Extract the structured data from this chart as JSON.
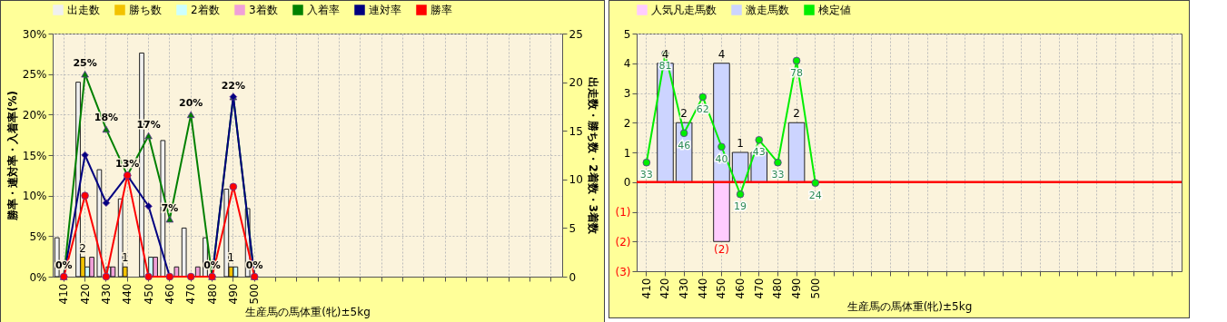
{
  "chart_data": [
    {
      "type": "bar",
      "xlabel": "生産馬の馬体重(牝)±5kg",
      "ylabel": "勝率・連対率・入着率(%)",
      "y2label": "出走数・勝ち数・2着数・3着数",
      "categories": [
        "410",
        "420",
        "430",
        "440",
        "450",
        "460",
        "470",
        "480",
        "490",
        "500",
        null,
        null,
        null,
        null,
        null,
        null,
        null,
        null,
        null,
        null,
        null,
        null,
        null,
        null
      ],
      "series": [
        {
          "name": "出走数",
          "axis": "y2",
          "color": "#f0f0f0",
          "values": [
            4,
            20,
            11,
            8,
            23,
            14,
            5,
            4,
            9,
            7,
            null,
            null,
            null,
            null,
            null,
            null,
            null,
            null,
            null,
            null,
            null,
            null,
            null,
            null
          ]
        },
        {
          "name": "勝ち数",
          "axis": "y2",
          "color": "#f2c200",
          "values": [
            0,
            2,
            0,
            1,
            0,
            0,
            0,
            0,
            1,
            0,
            null,
            null,
            null,
            null,
            null,
            null,
            null,
            null,
            null,
            null,
            null,
            null,
            null,
            null
          ],
          "value_labels": [
            null,
            "2",
            null,
            "1",
            null,
            null,
            null,
            null,
            "1",
            null,
            null,
            null,
            null,
            null,
            null,
            null,
            null,
            null,
            null,
            null,
            null,
            null,
            null,
            null
          ]
        },
        {
          "name": "2着数",
          "axis": "y2",
          "color": "#ccffff",
          "values": [
            0,
            1,
            1,
            0,
            2,
            0,
            0,
            0,
            1,
            0,
            null,
            null,
            null,
            null,
            null,
            null,
            null,
            null,
            null,
            null,
            null,
            null,
            null,
            null
          ]
        },
        {
          "name": "3着数",
          "axis": "y2",
          "color": "#f0a0d8",
          "values": [
            0,
            2,
            1,
            0,
            2,
            1,
            1,
            0,
            0,
            0,
            null,
            null,
            null,
            null,
            null,
            null,
            null,
            null,
            null,
            null,
            null,
            null,
            null,
            null
          ]
        },
        {
          "name": "入着率",
          "type": "line",
          "color": "#008000",
          "marker": "triangle",
          "values": [
            0,
            25,
            18.2,
            12.5,
            17.4,
            7.1,
            20,
            0,
            22.2,
            0,
            null,
            null,
            null,
            null,
            null,
            null,
            null,
            null,
            null,
            null,
            null,
            null,
            null,
            null
          ],
          "value_labels": [
            "0%",
            "25%",
            "18%",
            "13%",
            "17%",
            "7%",
            "20%",
            "0%",
            "22%",
            "0%",
            null,
            null,
            null,
            null,
            null,
            null,
            null,
            null,
            null,
            null,
            null,
            null,
            null,
            null
          ]
        },
        {
          "name": "連対率",
          "type": "line",
          "color": "#000080",
          "marker": "diamond",
          "values": [
            0,
            15,
            9.1,
            12.5,
            8.7,
            0,
            0,
            0,
            22.2,
            0,
            null,
            null,
            null,
            null,
            null,
            null,
            null,
            null,
            null,
            null,
            null,
            null,
            null,
            null
          ]
        },
        {
          "name": "勝率",
          "type": "line",
          "color": "#ff0000",
          "marker": "circle",
          "values": [
            0,
            10,
            0,
            12.5,
            0,
            0,
            0,
            0,
            11.1,
            0,
            null,
            null,
            null,
            null,
            null,
            null,
            null,
            null,
            null,
            null,
            null,
            null,
            null,
            null
          ]
        }
      ],
      "ylim": [
        0,
        30
      ],
      "yticks": [
        {
          "value": 0,
          "label": "0%"
        },
        {
          "value": 5,
          "label": "5%"
        },
        {
          "value": 10,
          "label": "10%"
        },
        {
          "value": 15,
          "label": "15%"
        },
        {
          "value": 20,
          "label": "20%"
        },
        {
          "value": 25,
          "label": "25%"
        },
        {
          "value": 30,
          "label": "30%"
        }
      ],
      "y2lim": [
        0,
        25
      ],
      "y2ticks": [
        0,
        5,
        10,
        15,
        20,
        25
      ],
      "grid": true,
      "legend": "top"
    },
    {
      "type": "bar",
      "xlabel": "生産馬の馬体重(牝)±5kg",
      "stacked": true,
      "categories": [
        "410",
        "420",
        "430",
        "440",
        "450",
        "460",
        "470",
        "480",
        "490",
        "500",
        null,
        null,
        null,
        null,
        null,
        null,
        null,
        null,
        null,
        null,
        null,
        null,
        null,
        null,
        null,
        null,
        null,
        null,
        null
      ],
      "series": [
        {
          "name": "人気凡走馬数",
          "color": "#ffccff",
          "values": [
            null,
            null,
            null,
            null,
            -2,
            null,
            null,
            null,
            null,
            null,
            null,
            null,
            null,
            null,
            null,
            null,
            null,
            null,
            null,
            null,
            null,
            null,
            null,
            null,
            null,
            null,
            null,
            null,
            null
          ],
          "value_labels": [
            null,
            null,
            null,
            null,
            "(2)",
            null,
            null,
            null,
            null,
            null,
            null,
            null,
            null,
            null,
            null,
            null,
            null,
            null,
            null,
            null,
            null,
            null,
            null,
            null,
            null,
            null,
            null,
            null,
            null
          ]
        },
        {
          "name": "激走馬数",
          "color": "#ccd4ff",
          "values": [
            null,
            4,
            2,
            null,
            4,
            1,
            1,
            null,
            2,
            null,
            null,
            null,
            null,
            null,
            null,
            null,
            null,
            null,
            null,
            null,
            null,
            null,
            null,
            null,
            null,
            null,
            null,
            null,
            null
          ],
          "value_labels": [
            null,
            "4",
            "2",
            null,
            "4",
            "1",
            null,
            null,
            "2",
            null,
            null,
            null,
            null,
            null,
            null,
            null,
            null,
            null,
            null,
            null,
            null,
            null,
            null,
            null,
            null,
            null,
            null,
            null,
            null
          ]
        },
        {
          "name": "検定値",
          "type": "line",
          "axis": "y2",
          "color": "#00ee00",
          "marker": "circle",
          "values": [
            33,
            81,
            46,
            62,
            40,
            19,
            43,
            33,
            78,
            24,
            null,
            null,
            null,
            null,
            null,
            null,
            null,
            null,
            null,
            null,
            null,
            null,
            null,
            null,
            null,
            null,
            null,
            null,
            null
          ],
          "value_labels": [
            "33",
            "81",
            "46",
            "62",
            "40",
            "19",
            "43",
            "33",
            "78",
            "24",
            null,
            null,
            null,
            null,
            null,
            null,
            null,
            null,
            null,
            null,
            null,
            null,
            null,
            null,
            null,
            null,
            null,
            null,
            null
          ]
        }
      ],
      "ylim": [
        -3,
        5
      ],
      "yticks": [
        {
          "value": -3,
          "label": "(3)"
        },
        {
          "value": -2,
          "label": "(2)"
        },
        {
          "value": -1,
          "label": "(1)"
        },
        0,
        1,
        2,
        3,
        4,
        5
      ],
      "y2lim": [
        -15,
        90
      ],
      "ref_lines": [
        {
          "axis": "y",
          "value": 0,
          "color": "#ff0000"
        }
      ],
      "grid": true,
      "legend": "top"
    }
  ]
}
